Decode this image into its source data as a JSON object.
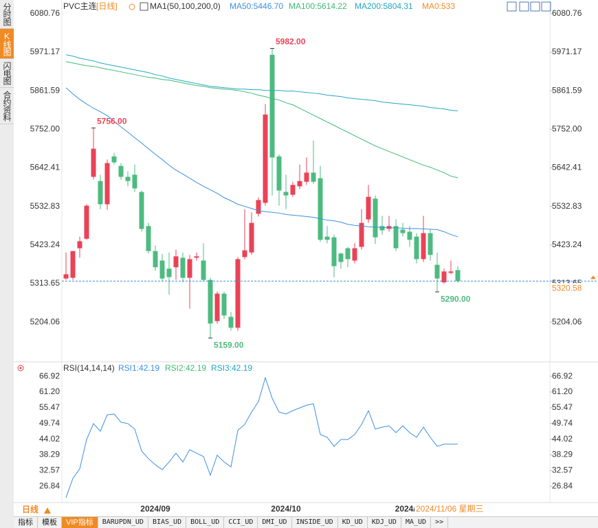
{
  "sidebar": [
    "分时图",
    "K线图",
    "闪电图",
    "合约资料"
  ],
  "header": {
    "symbol": "PVC主连",
    "period": "[日线]"
  },
  "x_axis": {
    "period_button": "日线",
    "cursor_label": "2024/11/06 星期三"
  },
  "tabs": [
    "指标",
    "模板",
    "VIP指标",
    "BARUPDN_UD",
    "BIAS_UD",
    "BOLL_UD",
    "CCI_UD",
    "DMI_UD",
    "INSIDE_UD",
    "KD_UD",
    "KDJ_UD",
    "MA_UD",
    ">>"
  ],
  "chart_data": [
    {
      "type": "candlestick",
      "up_color": "#eb4256",
      "down_color": "#4dbb80",
      "legend": [
        "MA1(50,100,200,0)",
        "MA50:5446.70",
        "MA100:5614.22",
        "MA200:5804.31",
        "MA0:533"
      ],
      "categories": [
        null,
        null,
        null,
        null,
        null,
        null,
        null,
        null,
        null,
        null,
        null,
        null,
        null,
        "2024/09",
        null,
        null,
        null,
        null,
        null,
        null,
        null,
        null,
        null,
        null,
        null,
        null,
        null,
        null,
        null,
        null,
        null,
        null,
        "2024/10",
        null,
        null,
        null,
        null,
        null,
        null,
        null,
        null,
        null,
        null,
        null,
        null,
        null,
        null,
        null,
        null,
        null,
        "2024/11",
        null,
        null,
        null,
        null,
        null,
        null,
        null
      ],
      "open": [
        5328,
        5330,
        5414,
        5441,
        5617,
        5605,
        5539,
        5675,
        5648,
        5617,
        5623,
        5574,
        5477,
        5406,
        5379,
        5356,
        5360,
        5387,
        5330,
        5387,
        5379,
        5324,
        5207,
        5285,
        5219,
        5188,
        5389,
        5402,
        5512,
        5543,
        5964,
        5675,
        5574,
        5566,
        5590,
        5603,
        5629,
        5613,
        5447,
        5445,
        5399,
        5414,
        5379,
        5418,
        5496,
        5555,
        5477,
        5469,
        5477,
        5467,
        5461,
        5447,
        5383,
        5457,
        5367,
        5317,
        5344,
        5352
      ],
      "high": [
        5402,
        5406,
        5447,
        5539,
        5756,
        5623,
        5666,
        5685,
        5656,
        5633,
        5652,
        5578,
        5486,
        5422,
        5398,
        5402,
        5410,
        5402,
        5395,
        5402,
        5428,
        5330,
        5291,
        5291,
        5233,
        5389,
        5525,
        5516,
        5558,
        5824,
        5982,
        5681,
        5623,
        5603,
        5652,
        5672,
        5720,
        5648,
        5477,
        5453,
        5402,
        5418,
        5428,
        5525,
        5594,
        5564,
        5506,
        5506,
        5496,
        5486,
        5477,
        5457,
        5506,
        5467,
        5402,
        5356,
        5379,
        5363
      ],
      "low": [
        5324,
        5324,
        5387,
        5438,
        5609,
        5525,
        5523,
        5652,
        5609,
        5590,
        5574,
        5461,
        5399,
        5350,
        5320,
        5282,
        5324,
        5317,
        5242,
        5379,
        5320,
        5159,
        5200,
        5213,
        5180,
        5180,
        5383,
        5395,
        5504,
        5535,
        5564,
        5535,
        5525,
        5560,
        5582,
        5594,
        5597,
        5432,
        5428,
        5332,
        5356,
        5360,
        5371,
        5410,
        5486,
        5426,
        5453,
        5461,
        5406,
        5447,
        5418,
        5371,
        5375,
        5379,
        5290,
        5313,
        5340,
        5316
      ],
      "close": [
        5340,
        5406,
        5434,
        5535,
        5697,
        5539,
        5656,
        5658,
        5617,
        5605,
        5584,
        5469,
        5406,
        5360,
        5328,
        5332,
        5391,
        5330,
        5383,
        5391,
        5324,
        5200,
        5285,
        5223,
        5188,
        5383,
        5408,
        5486,
        5551,
        5794,
        5672,
        5578,
        5564,
        5594,
        5605,
        5629,
        5603,
        5438,
        5438,
        5363,
        5375,
        5383,
        5414,
        5486,
        5560,
        5445,
        5465,
        5477,
        5414,
        5457,
        5438,
        5383,
        5457,
        5395,
        5328,
        5348,
        5348,
        5320.58
      ],
      "series": [
        {
          "name": "MA50",
          "color": "#3b8fe0",
          "values": [
            5870,
            5853,
            5837,
            5824,
            5812,
            5802,
            5791,
            5775,
            5759,
            5744,
            5728,
            5713,
            5697,
            5681,
            5666,
            5650,
            5636,
            5625,
            5613,
            5601,
            5590,
            5580,
            5570,
            5558,
            5549,
            5539,
            5533,
            5527,
            5521,
            5518,
            5516,
            5514,
            5510,
            5508,
            5506,
            5504,
            5502,
            5498,
            5494,
            5492,
            5488,
            5482,
            5479,
            5477,
            5475,
            5474,
            5473,
            5472,
            5472,
            5471,
            5470,
            5470,
            5469,
            5468,
            5467,
            5461,
            5453,
            5446.7
          ]
        },
        {
          "name": "MA100",
          "color": "#3dba74",
          "values": [
            5944.5,
            5940.6,
            5936.7,
            5932.8,
            5930.9,
            5926.9,
            5923,
            5919.2,
            5915.3,
            5911.4,
            5907.5,
            5903.6,
            5899.7,
            5897.7,
            5893.8,
            5891.9,
            5888,
            5884,
            5880.2,
            5876.3,
            5874.3,
            5870.4,
            5868.5,
            5866.5,
            5864.6,
            5862.6,
            5858.7,
            5854.8,
            5849,
            5845,
            5839.2,
            5835.3,
            5827.5,
            5821.7,
            5811.9,
            5802.2,
            5792.4,
            5782.7,
            5772.9,
            5763.2,
            5753.4,
            5743.7,
            5733.9,
            5724.2,
            5714.4,
            5704.7,
            5696.9,
            5689.1,
            5681.3,
            5673.5,
            5665.7,
            5657.9,
            5650.1,
            5644.2,
            5636.4,
            5628.6,
            5618.9,
            5614.22
          ]
        },
        {
          "name": "MA200",
          "color": "#22a7c2",
          "values": [
            5964,
            5960.1,
            5954.3,
            5950.4,
            5946.5,
            5940.6,
            5936.7,
            5932.8,
            5928.9,
            5925,
            5921.1,
            5917.2,
            5913.3,
            5907.5,
            5903.6,
            5897.7,
            5893.8,
            5889.9,
            5886,
            5882.1,
            5878.2,
            5874.3,
            5872.4,
            5870.4,
            5868.5,
            5866.5,
            5866.5,
            5864.6,
            5864.6,
            5862.6,
            5862.6,
            5862.6,
            5860.7,
            5860.7,
            5858.7,
            5856.8,
            5854.8,
            5852.9,
            5849,
            5847,
            5845.1,
            5841.2,
            5839.2,
            5837.3,
            5835.3,
            5833.4,
            5829.5,
            5827.5,
            5825.6,
            5823.6,
            5821.7,
            5819.7,
            5817.8,
            5813.9,
            5811.9,
            5810,
            5806.1,
            5804.31
          ]
        }
      ],
      "annotations": [
        {
          "value": 5982,
          "label": "5982.00"
        },
        {
          "value": 5756,
          "label": "5756.00"
        },
        {
          "value": 5159,
          "label": "5159.00"
        },
        {
          "value": 5290,
          "label": "5290.00"
        }
      ],
      "ylim": [
        5095,
        6104
      ],
      "yticks": [
        6080.76,
        5971.17,
        5861.59,
        {
          "value": 5752,
          "label": "5752.00"
        },
        5642.41,
        5532.83,
        5423.24,
        5313.65,
        5204.06
      ]
    },
    {
      "type": "line",
      "title": "RSI(14,14,14)",
      "legend": [
        "RSI1:42.19",
        "RSI2:42.19",
        "RSI3:42.19"
      ],
      "series": [
        {
          "name": "RSI1",
          "color": "#3b8fe0",
          "values": [
            22.7,
            29.7,
            33.2,
            43.9,
            49.7,
            46.9,
            52.9,
            53.2,
            50.2,
            49.7,
            47.7,
            39.7,
            36.9,
            34.7,
            32.9,
            35.7,
            38.9,
            35.7,
            40.2,
            38.9,
            37.7,
            30.9,
            38.2,
            35.7,
            33.9,
            47.2,
            49.4,
            53.9,
            57.7,
            66.4,
            58.9,
            53.9,
            53.2,
            54.4,
            55.4,
            56.4,
            56.9,
            45.7,
            44.7,
            41.4,
            43.9,
            43.9,
            45.7,
            49.4,
            54.4,
            47.7,
            48.4,
            48.9,
            46.4,
            48.9,
            46.4,
            44.7,
            48.4,
            44.7,
            41.4,
            42.2,
            42.2,
            42.19
          ]
        }
      ],
      "ylim": [
        21.4,
        70.2
      ],
      "yticks": [
        66.92,
        {
          "value": 61.2,
          "label": "61.20"
        },
        55.47,
        49.74,
        44.02,
        38.29,
        32.57,
        26.84
      ]
    }
  ]
}
